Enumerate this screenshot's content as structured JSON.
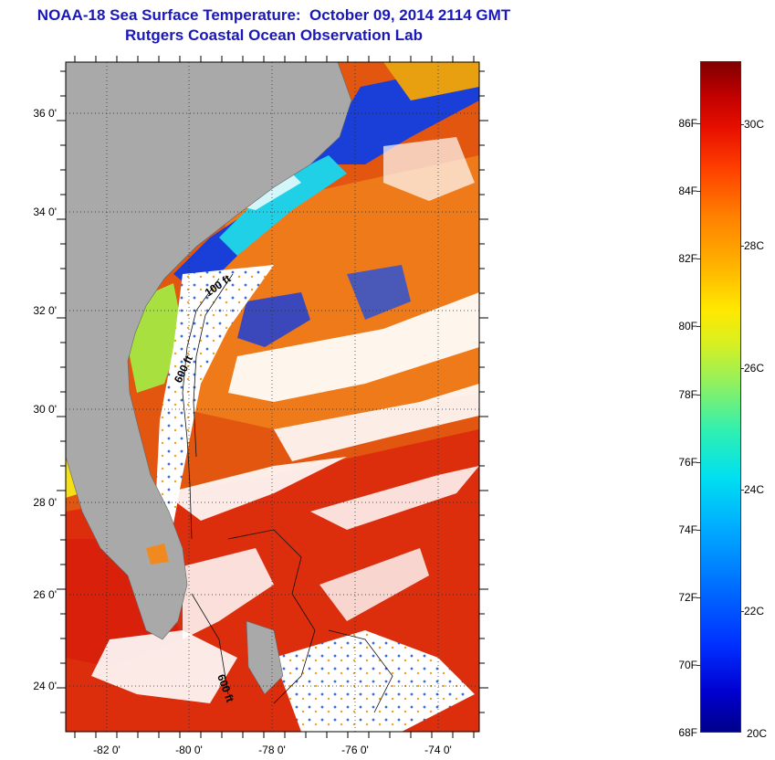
{
  "title": {
    "line1": "NOAA-18 Sea Surface Temperature:  October 09, 2014 2114 GMT",
    "line2": "Rutgers Coastal Ocean Observation Lab"
  },
  "map": {
    "lat_labels": [
      "36 0'",
      "34 0'",
      "32 0'",
      "30 0'",
      "28 0'",
      "26 0'",
      "24 0'"
    ],
    "lon_labels": [
      "-82 0'",
      "-80 0'",
      "-78 0'",
      "-76 0'",
      "-74 0'"
    ],
    "isobath_labels": [
      "100 ft",
      "600 ft",
      "600 ft"
    ],
    "colors": {
      "land": "#a9a9a9",
      "cloud": "#ffffff",
      "cold_shelf": "#1030d8",
      "warm_offshore": "#e84010",
      "stream": "#d51a08"
    }
  },
  "colorbar": {
    "fahrenheit_labels": [
      "86F",
      "84F",
      "82F",
      "80F",
      "78F",
      "76F",
      "74F",
      "72F",
      "70F",
      "68F"
    ],
    "celsius_labels": [
      "30C",
      "28C",
      "26C",
      "24C",
      "22C",
      "20C"
    ],
    "range_f": [
      68,
      88
    ],
    "range_c": [
      20,
      31
    ]
  }
}
